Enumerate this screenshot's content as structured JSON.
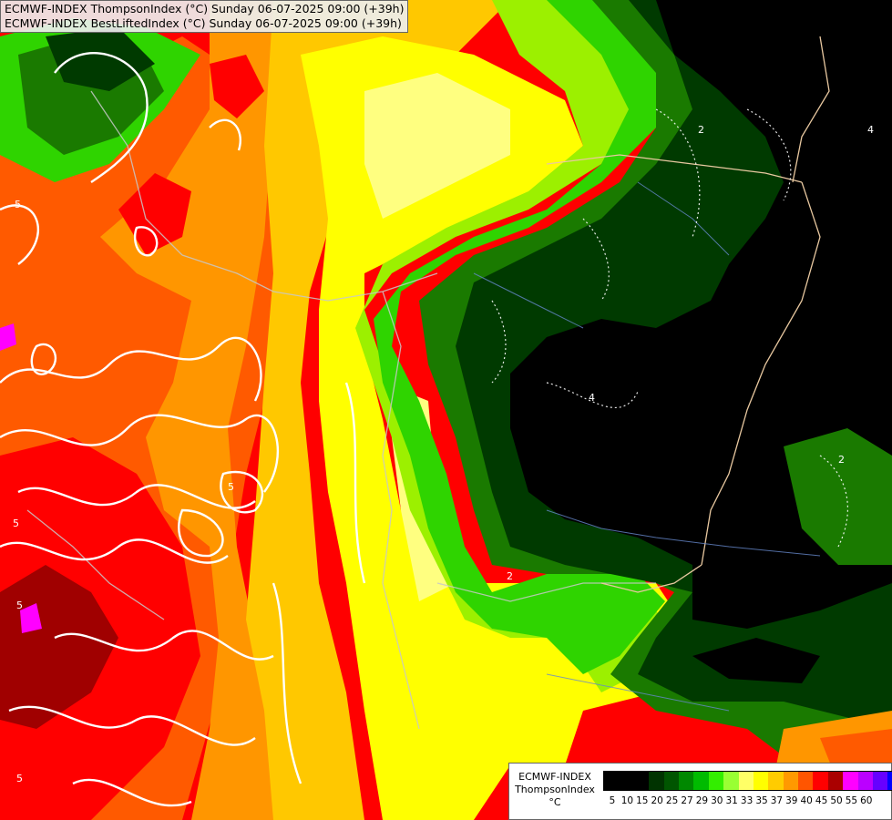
{
  "header": {
    "line1": "ECMWF-INDEX ThompsonIndex (°C) Sunday 06-07-2025 09:00 (+39h)",
    "line2": "ECMWF-INDEX BestLiftedIndex (°C) Sunday 06-07-2025 09:00 (+39h)"
  },
  "legend": {
    "model": "ECMWF-INDEX",
    "parameter": "ThompsonIndex",
    "unit": "°C",
    "ticks": [
      "5",
      "10",
      "15",
      "20",
      "25",
      "27",
      "29",
      "30",
      "31",
      "33",
      "35",
      "37",
      "39",
      "40",
      "45",
      "50",
      "55",
      "60"
    ],
    "colors": [
      "#000000",
      "#000000",
      "#000000",
      "#003300",
      "#005500",
      "#008800",
      "#00bb00",
      "#33ee00",
      "#99ff33",
      "#ffff66",
      "#ffff00",
      "#ffcc00",
      "#ff9900",
      "#ff5500",
      "#ff0000",
      "#aa0000",
      "#ff00ff",
      "#bb00ff",
      "#6600ff",
      "#0000ff"
    ]
  },
  "contour_labels": [
    "5",
    "5",
    "5",
    "5",
    "2",
    "2",
    "4",
    "2",
    "5",
    "4"
  ],
  "map_colors": {
    "black": "#000000",
    "dark_green": "#003a00",
    "green": "#1a7a00",
    "bright_green": "#2fd400",
    "light_green": "#9cf000",
    "pale_yellow": "#ffff80",
    "yellow": "#ffff00",
    "gold": "#ffc800",
    "orange": "#ff9600",
    "dark_orange": "#ff5a00",
    "red": "#ff0000",
    "dark_red": "#a00000",
    "magenta": "#ff00ff"
  }
}
